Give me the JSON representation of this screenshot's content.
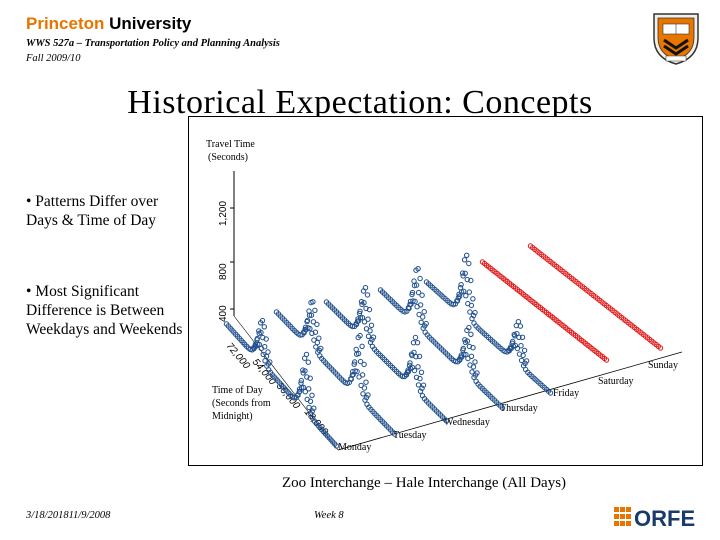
{
  "header": {
    "logo_brand": "Princeton",
    "logo_university": "University",
    "course": "WWS 527a – Transportation Policy and Planning Analysis",
    "term": "Fall 2009/10",
    "shield_icon": "princeton-shield-icon"
  },
  "slide": {
    "title": "Historical Expectation: Concepts",
    "bullets": [
      "• Patterns Differ over Days & Time of Day",
      "• Most Significant Difference is Between Weekdays and Weekends"
    ],
    "caption": "Zoo Interchange – Hale Interchange (All Days)"
  },
  "figure": {
    "z_axis_label_1": "Travel Time",
    "z_axis_label_2": "(Seconds)",
    "z_ticks": [
      "400",
      "800",
      "1,200"
    ],
    "x_axis_label_1": "Time of Day",
    "x_axis_label_2": "(Seconds from",
    "x_axis_label_3": "Midnight)",
    "x_ticks": [
      "72,000",
      "54,000",
      "36,000",
      "18,000"
    ],
    "days": [
      "Monday",
      "Tuesday",
      "Wednesday",
      "Thursday",
      "Friday",
      "Saturday",
      "Sunday"
    ],
    "weekday_color": "#1f4e8c",
    "weekend_color": "#e11414"
  },
  "footer": {
    "date": "3/18/201811/9/2008",
    "week": "Week 8",
    "orfe_label": "ORFE",
    "orfe_color": "#e77500",
    "orfe_text_color": "#1a3a6b"
  }
}
